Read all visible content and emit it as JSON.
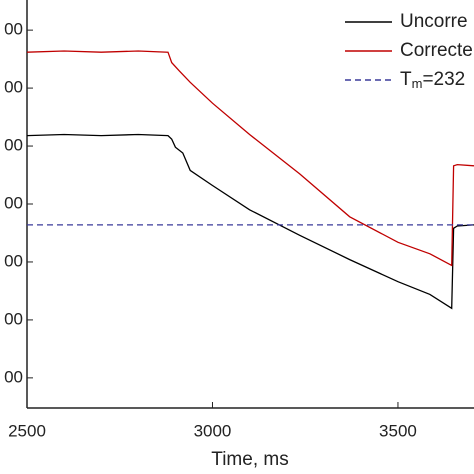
{
  "chart_data": {
    "type": "line",
    "x_label": "Time, ms",
    "xlim": [
      2500,
      3705
    ],
    "ylim": [
      74,
      426
    ],
    "xticks": [
      2500,
      3000,
      3500
    ],
    "yticks": [
      {
        "value": 100,
        "label": "00"
      },
      {
        "value": 150,
        "label": "00"
      },
      {
        "value": 200,
        "label": "00"
      },
      {
        "value": 250,
        "label": "00"
      },
      {
        "value": 300,
        "label": "00"
      },
      {
        "value": 350,
        "label": "00"
      },
      {
        "value": 400,
        "label": "00"
      }
    ],
    "series": [
      {
        "name": "Uncorre",
        "color": "#000000",
        "x": [
          2500,
          2600,
          2700,
          2800,
          2880,
          2890,
          2900,
          2920,
          2940,
          3000,
          3100,
          3235,
          3370,
          3500,
          3586,
          3645,
          3650,
          3660,
          3705
        ],
        "values": [
          309,
          310,
          309,
          310,
          309,
          306,
          299,
          294,
          279,
          266,
          245,
          223,
          202,
          183,
          172,
          160,
          229,
          231,
          232
        ]
      },
      {
        "name": "Correcte",
        "color": "#c00000",
        "x": [
          2500,
          2600,
          2700,
          2800,
          2880,
          2890,
          2910,
          2940,
          3000,
          3100,
          3235,
          3370,
          3500,
          3586,
          3645,
          3650,
          3660,
          3705
        ],
        "values": [
          381,
          382,
          381,
          382,
          381,
          372,
          365,
          355,
          337,
          310,
          276,
          239,
          217,
          207,
          197,
          283,
          284,
          283
        ]
      },
      {
        "name": "T",
        "name_subscript": "m",
        "name_suffix": "=232",
        "color": "#3a3a9a",
        "dashed": true,
        "x": [
          2500,
          3705
        ],
        "values": [
          232,
          232
        ]
      }
    ]
  }
}
